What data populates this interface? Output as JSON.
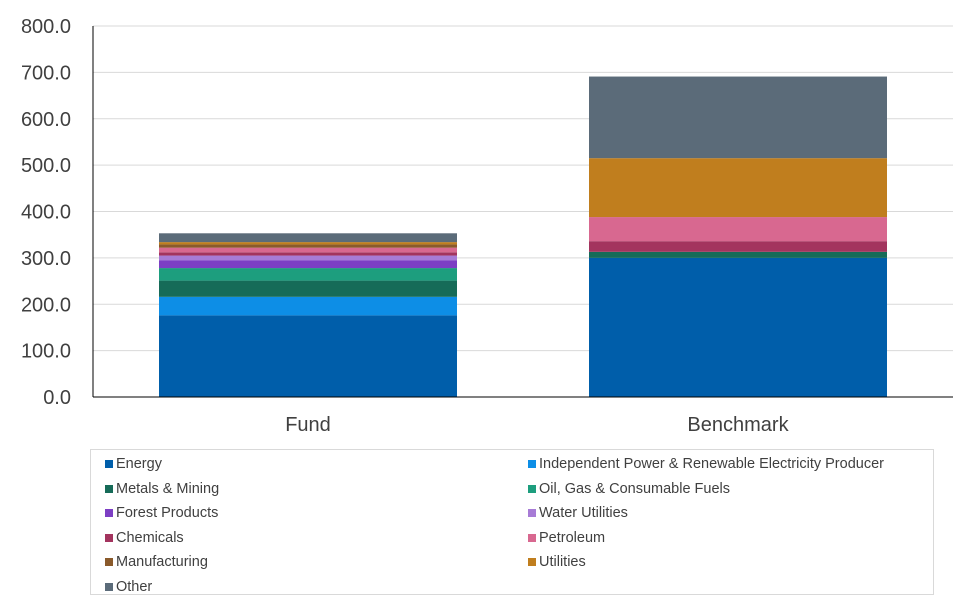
{
  "chart_data": {
    "type": "bar",
    "stacked": true,
    "categories": [
      "Fund",
      "Benchmark"
    ],
    "ylim": [
      0,
      800
    ],
    "yticks": [
      "0.0",
      "100.0",
      "200.0",
      "300.0",
      "400.0",
      "500.0",
      "600.0",
      "700.0",
      "800.0"
    ],
    "grid": true,
    "legend_position": "bottom",
    "series": [
      {
        "name": "Energy",
        "color": "#005EAA",
        "values": [
          176,
          300
        ]
      },
      {
        "name": "Independent Power & Renewable Electricity Producer",
        "color": "#0D8EE6",
        "values": [
          40,
          0
        ]
      },
      {
        "name": "Metals & Mining",
        "color": "#166B58",
        "values": [
          35,
          13
        ]
      },
      {
        "name": "Oil, Gas & Consumable Fuels",
        "color": "#1D9E7E",
        "values": [
          27,
          0
        ]
      },
      {
        "name": "Forest Products",
        "color": "#7D3FC4",
        "values": [
          17,
          0
        ]
      },
      {
        "name": "Water Utilities",
        "color": "#A77BD6",
        "values": [
          10,
          0
        ]
      },
      {
        "name": "Chemicals",
        "color": "#A3345E",
        "values": [
          7,
          23
        ]
      },
      {
        "name": "Petroleum",
        "color": "#D86890",
        "values": [
          10,
          52
        ]
      },
      {
        "name": "Manufacturing",
        "color": "#8A5A2B",
        "values": [
          7,
          0
        ]
      },
      {
        "name": "Utilities",
        "color": "#C07E1E",
        "values": [
          5,
          127
        ]
      },
      {
        "name": "Other",
        "color": "#5B6B79",
        "values": [
          19,
          176
        ]
      }
    ]
  }
}
